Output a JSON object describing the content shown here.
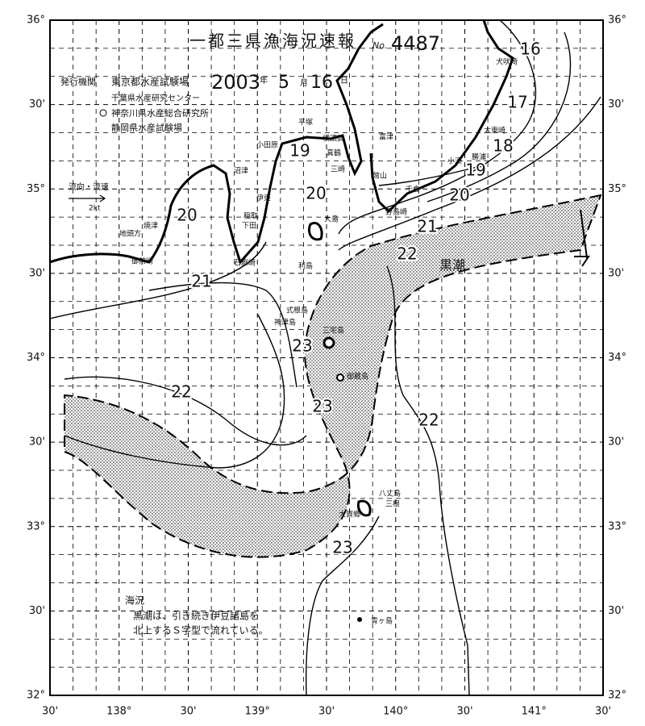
{
  "header": {
    "title": "一都三県漁海況速報",
    "no_label": "No.",
    "number": "4487",
    "issuer_label": "発行機関",
    "issuers": [
      "東京都水産試験場",
      "千葉県水産研究センター",
      "神奈川県水産総合研究所",
      "静岡県水産試験場"
    ],
    "year": "2003",
    "year_unit": "年",
    "month": "5",
    "month_unit": "月",
    "day": "16",
    "day_unit": "日"
  },
  "map": {
    "lat_labels": [
      "36°",
      "30'",
      "35°",
      "30'",
      "34°",
      "30'",
      "33°",
      "30'",
      "32°"
    ],
    "lon_labels": [
      "30'",
      "138°",
      "30'",
      "139°",
      "30'",
      "140°",
      "30'",
      "141°",
      "30'"
    ],
    "isotherm_labels": [
      "16",
      "17",
      "18",
      "19",
      "20",
      "21",
      "22",
      "19",
      "20",
      "20",
      "21",
      "22",
      "23",
      "22",
      "23",
      "23"
    ],
    "places": [
      "犬吠埼",
      "太東崎",
      "勝浦",
      "小湊",
      "千倉",
      "野島崎",
      "富津",
      "横須賀",
      "館山",
      "三崎",
      "平塚",
      "小田原",
      "真鶴",
      "伊東",
      "沼津",
      "稲取",
      "下田",
      "石廊崎",
      "焼津",
      "地頭方",
      "御前崎",
      "大島",
      "利島",
      "式根島",
      "神津島",
      "三宅島",
      "御蔵島",
      "八丈島",
      "三根",
      "大賀郷",
      "青ヶ島"
    ],
    "current_label": "黒潮",
    "legend": {
      "title": "流向・流速",
      "speed": "2kt"
    },
    "note": {
      "title": "海況",
      "lines": [
        "黒潮は、引き続き伊豆諸島を",
        "北上するＳ字型で流れている。"
      ]
    }
  }
}
